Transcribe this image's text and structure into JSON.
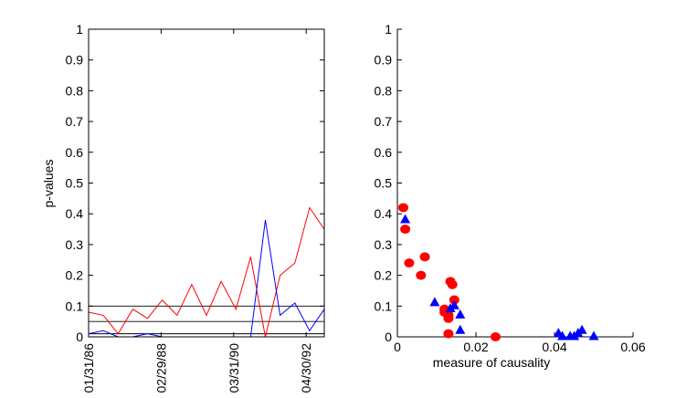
{
  "chart_data": [
    {
      "type": "line",
      "title": "",
      "xlabel": "",
      "ylabel": "p-values",
      "ylim": [
        0,
        1
      ],
      "y_ticks": [
        0,
        0.1,
        0.2,
        0.3,
        0.4,
        0.5,
        0.6,
        0.7,
        0.8,
        0.9,
        1
      ],
      "y_tick_labels": [
        "0",
        "0.1",
        "0.2",
        "0.3",
        "0.4",
        "0.5",
        "0.6",
        "0.7",
        "0.8",
        "0.9",
        "1"
      ],
      "x_tick_labels": [
        "01/31/86",
        "02/29/88",
        "03/31/90",
        "04/30/92"
      ],
      "x_tick_index": [
        1,
        9,
        17,
        25
      ],
      "x_index_range": [
        1,
        27
      ],
      "reference_lines": [
        0.01,
        0.05,
        0.1
      ],
      "series": [
        {
          "name": "red",
          "color": "#ff0000",
          "values": [
            0.08,
            0.07,
            0.01,
            0.09,
            0.06,
            0.12,
            0.07,
            0.17,
            0.07,
            0.18,
            0.09,
            0.26,
            0.0,
            0.2,
            0.24,
            0.42,
            0.35
          ]
        },
        {
          "name": "blue",
          "color": "#0000ff",
          "values": [
            0.01,
            0.02,
            0.0,
            0.0,
            0.01,
            0.0,
            0.0,
            0.0,
            0.0,
            0.0,
            0.0,
            0.0,
            0.38,
            0.07,
            0.11,
            0.02,
            0.09
          ]
        }
      ]
    },
    {
      "type": "scatter",
      "title": "",
      "xlabel": "measure of causality",
      "ylabel": "",
      "xlim": [
        0,
        0.06
      ],
      "ylim": [
        0,
        1
      ],
      "x_ticks": [
        0,
        0.02,
        0.04,
        0.06
      ],
      "x_tick_labels": [
        "0",
        "0.02",
        "0.04",
        "0.06"
      ],
      "y_ticks": [
        0,
        0.1,
        0.2,
        0.3,
        0.4,
        0.5,
        0.6,
        0.7,
        0.8,
        0.9,
        1
      ],
      "y_tick_labels": [
        "0",
        "0.1",
        "0.2",
        "0.3",
        "0.4",
        "0.5",
        "0.6",
        "0.7",
        "0.8",
        "0.9",
        "1"
      ],
      "series": [
        {
          "name": "red-circles",
          "marker": "circle",
          "color": "#ff0000",
          "points": [
            [
              0.0015,
              0.42
            ],
            [
              0.002,
              0.35
            ],
            [
              0.003,
              0.24
            ],
            [
              0.006,
              0.2
            ],
            [
              0.007,
              0.26
            ],
            [
              0.012,
              0.09
            ],
            [
              0.012,
              0.08
            ],
            [
              0.013,
              0.06
            ],
            [
              0.013,
              0.07
            ],
            [
              0.0135,
              0.18
            ],
            [
              0.014,
              0.17
            ],
            [
              0.0145,
              0.12
            ],
            [
              0.013,
              0.01
            ],
            [
              0.025,
              0.0
            ]
          ]
        },
        {
          "name": "blue-triangles",
          "marker": "triangle",
          "color": "#0000ff",
          "points": [
            [
              0.002,
              0.38
            ],
            [
              0.0095,
              0.11
            ],
            [
              0.0135,
              0.09
            ],
            [
              0.0145,
              0.1
            ],
            [
              0.016,
              0.07
            ],
            [
              0.016,
              0.02
            ],
            [
              0.041,
              0.01
            ],
            [
              0.042,
              0.0
            ],
            [
              0.044,
              0.0
            ],
            [
              0.045,
              0.0
            ],
            [
              0.046,
              0.01
            ],
            [
              0.047,
              0.02
            ],
            [
              0.05,
              0.0
            ]
          ]
        }
      ]
    }
  ]
}
